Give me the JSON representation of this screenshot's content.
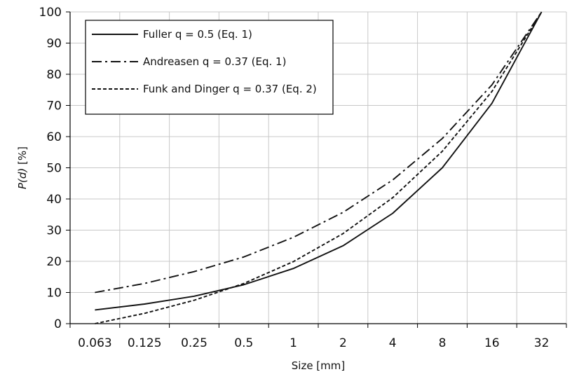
{
  "chart_data": {
    "type": "line",
    "xlabel": "Size [mm]",
    "ylabel": "P(d) [%]",
    "x_scale": "log2",
    "x": [
      0.063,
      0.125,
      0.25,
      0.5,
      1,
      2,
      4,
      8,
      16,
      32
    ],
    "x_tick_labels": [
      "0.063",
      "0.125",
      "0.25",
      "0.5",
      "1",
      "2",
      "4",
      "8",
      "16",
      "32"
    ],
    "ylim": [
      0,
      100
    ],
    "y_ticks": [
      0,
      10,
      20,
      30,
      40,
      50,
      60,
      70,
      80,
      90,
      100
    ],
    "grid": true,
    "legend_position": "top-left",
    "series": [
      {
        "name": "Fuller q = 0.5 (Eq. 1)",
        "style": "solid",
        "values": [
          4.4,
          6.3,
          8.8,
          12.5,
          17.7,
          25.0,
          35.4,
          50.0,
          70.7,
          100
        ]
      },
      {
        "name": "Andreasen q = 0.37 (Eq. 1)",
        "style": "dash-dot",
        "values": [
          10.0,
          12.9,
          16.7,
          21.4,
          27.7,
          35.7,
          46.1,
          59.4,
          76.6,
          100
        ]
      },
      {
        "name": "Funk and Dinger q = 0.37 (Eq. 2)",
        "style": "dashed",
        "values": [
          0.0,
          3.3,
          7.5,
          12.9,
          19.9,
          28.9,
          40.4,
          55.3,
          74.5,
          100
        ]
      }
    ]
  }
}
